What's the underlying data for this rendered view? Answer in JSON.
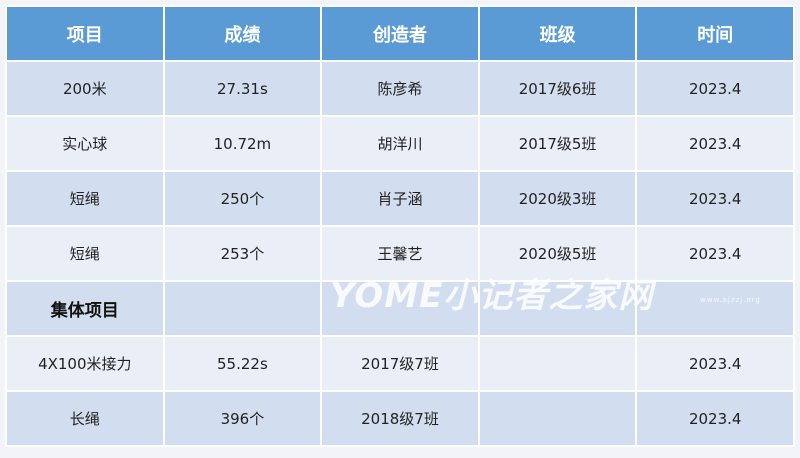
{
  "table": {
    "headers": [
      "项目",
      "成绩",
      "创造者",
      "班级",
      "时间"
    ],
    "rows": [
      [
        "200米",
        "27.31s",
        "陈彦希",
        "2017级6班",
        "2023.4"
      ],
      [
        "实心球",
        "10.72m",
        "胡洋川",
        "2017级5班",
        "2023.4"
      ],
      [
        "短绳",
        "250个",
        "肖子涵",
        "2020级3班",
        "2023.4"
      ],
      [
        "短绳",
        "253个",
        "王馨艺",
        "2020级5班",
        "2023.4"
      ]
    ],
    "section_title": "集体项目",
    "group_rows": [
      [
        "4X100米接力",
        "55.22s",
        "2017级7班",
        "",
        "2023.4"
      ],
      [
        "长绳",
        "396个",
        "2018级7班",
        "",
        "2023.4"
      ]
    ]
  },
  "colors": {
    "header": "#5b9bd5",
    "row_dark": "#d2deef",
    "row_light": "#eaeff7"
  },
  "watermark": {
    "text": "YOME小记者之家网",
    "url": "www.xjzzj.org"
  }
}
